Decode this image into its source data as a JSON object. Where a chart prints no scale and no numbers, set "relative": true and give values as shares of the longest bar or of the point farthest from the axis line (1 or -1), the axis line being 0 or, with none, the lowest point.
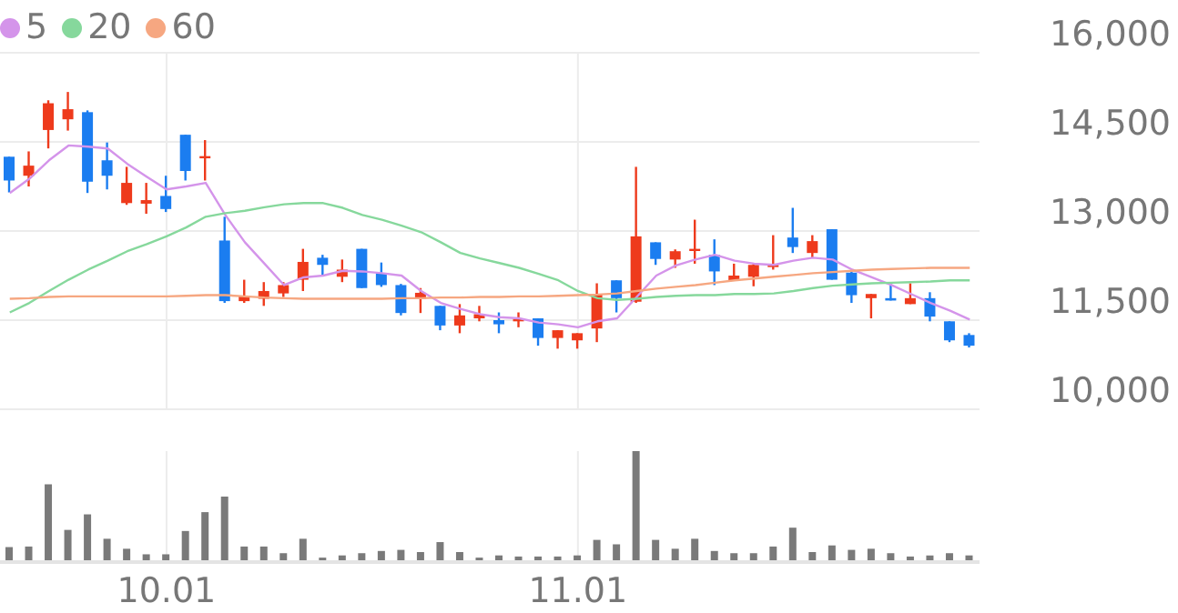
{
  "chart_data": [
    {
      "type": "candlestick",
      "categories": [
        null,
        null,
        null,
        null,
        null,
        null,
        null,
        null,
        "10.01",
        null,
        null,
        null,
        null,
        null,
        null,
        null,
        null,
        null,
        null,
        null,
        null,
        null,
        null,
        null,
        null,
        null,
        null,
        null,
        null,
        "11.01",
        null,
        null,
        null,
        null,
        null,
        null,
        null,
        null,
        null,
        null,
        null,
        null,
        null,
        null,
        null,
        null,
        null,
        null,
        null,
        null
      ],
      "ohlc": [
        [
          14250,
          14250,
          13650,
          13850
        ],
        [
          13930,
          14340,
          13750,
          14100
        ],
        [
          14700,
          15200,
          14390,
          15150
        ],
        [
          14880,
          15340,
          14690,
          15050
        ],
        [
          15000,
          15030,
          13640,
          13830
        ],
        [
          14190,
          14490,
          13700,
          13930
        ],
        [
          13470,
          14080,
          13440,
          13810
        ],
        [
          13460,
          13810,
          13290,
          13520
        ],
        [
          13590,
          13930,
          13320,
          13370
        ],
        [
          14620,
          14620,
          13850,
          14010
        ],
        [
          14250,
          14530,
          13850,
          14260
        ],
        [
          12840,
          13240,
          11790,
          11820
        ],
        [
          11820,
          12180,
          11790,
          11910
        ],
        [
          11860,
          12140,
          11740,
          11990
        ],
        [
          11950,
          12140,
          11890,
          12090
        ],
        [
          12180,
          12700,
          11990,
          12480
        ],
        [
          12550,
          12600,
          12250,
          12430
        ],
        [
          12230,
          12520,
          12140,
          12350
        ],
        [
          12700,
          12700,
          12040,
          12040
        ],
        [
          12290,
          12470,
          12060,
          12090
        ],
        [
          12090,
          12110,
          11580,
          11620
        ],
        [
          11860,
          12040,
          11620,
          11960
        ],
        [
          11740,
          11740,
          11330,
          11410
        ],
        [
          11410,
          11770,
          11280,
          11580
        ],
        [
          11530,
          11740,
          11480,
          11600
        ],
        [
          11500,
          11630,
          11280,
          11430
        ],
        [
          11480,
          11630,
          11380,
          11520
        ],
        [
          11530,
          11530,
          11070,
          11200
        ],
        [
          11200,
          11330,
          11020,
          11330
        ],
        [
          11160,
          11280,
          11020,
          11280
        ],
        [
          11360,
          12120,
          11130,
          11940
        ],
        [
          12170,
          12170,
          11630,
          11870
        ],
        [
          11810,
          14080,
          11790,
          12910
        ],
        [
          12810,
          12810,
          12430,
          12530
        ],
        [
          12520,
          12690,
          12380,
          12660
        ],
        [
          12670,
          13190,
          12450,
          12700
        ],
        [
          12600,
          12860,
          12090,
          12320
        ],
        [
          12170,
          12450,
          12170,
          12250
        ],
        [
          12230,
          12450,
          12070,
          12430
        ],
        [
          12400,
          12930,
          12350,
          12430
        ],
        [
          12890,
          13390,
          12630,
          12730
        ],
        [
          12630,
          12930,
          12550,
          12830
        ],
        [
          13030,
          13030,
          12180,
          12180
        ],
        [
          12300,
          12320,
          11790,
          11920
        ],
        [
          11870,
          11940,
          11530,
          11940
        ],
        [
          11870,
          12120,
          11830,
          11830
        ],
        [
          11770,
          12120,
          11770,
          11870
        ],
        [
          11870,
          11970,
          11480,
          11560
        ],
        [
          11480,
          11480,
          11130,
          11160
        ],
        [
          11250,
          11280,
          11040,
          11070
        ]
      ],
      "colors": [
        "#1b7df0",
        "#ee3a1c",
        "#ee3a1c",
        "#ee3a1c",
        "#1b7df0",
        "#1b7df0",
        "#ee3a1c",
        "#ee3a1c",
        "#1b7df0",
        "#1b7df0",
        "#ee3a1c",
        "#1b7df0",
        "#ee3a1c",
        "#ee3a1c",
        "#ee3a1c",
        "#ee3a1c",
        "#1b7df0",
        "#ee3a1c",
        "#1b7df0",
        "#1b7df0",
        "#1b7df0",
        "#ee3a1c",
        "#1b7df0",
        "#ee3a1c",
        "#ee3a1c",
        "#1b7df0",
        "#ee3a1c",
        "#1b7df0",
        "#ee3a1c",
        "#ee3a1c",
        "#ee3a1c",
        "#1b7df0",
        "#ee3a1c",
        "#1b7df0",
        "#ee3a1c",
        "#ee3a1c",
        "#1b7df0",
        "#ee3a1c",
        "#ee3a1c",
        "#ee3a1c",
        "#1b7df0",
        "#ee3a1c",
        "#1b7df0",
        "#1b7df0",
        "#ee3a1c",
        "#1b7df0",
        "#ee3a1c",
        "#1b7df0",
        "#1b7df0",
        "#1b7df0"
      ],
      "series": [
        {
          "type": "line",
          "name": "5",
          "color": "#d494ea",
          "values": [
            13640,
            13880,
            14190,
            14440,
            14420,
            14390,
            14130,
            13910,
            13700,
            13750,
            13810,
            13270,
            12810,
            12450,
            12090,
            12220,
            12250,
            12330,
            12320,
            12290,
            12250,
            11990,
            11790,
            11690,
            11600,
            11550,
            11530,
            11460,
            11430,
            11380,
            11480,
            11530,
            11890,
            12250,
            12420,
            12520,
            12600,
            12500,
            12450,
            12430,
            12500,
            12550,
            12520,
            12350,
            12220,
            12090,
            11940,
            11790,
            11660,
            11510
          ]
        },
        {
          "type": "line",
          "name": "20",
          "color": "#86d89c",
          "values": [
            11630,
            11790,
            11990,
            12180,
            12350,
            12500,
            12660,
            12780,
            12910,
            13060,
            13240,
            13300,
            13340,
            13400,
            13450,
            13470,
            13470,
            13390,
            13270,
            13190,
            13090,
            12980,
            12810,
            12630,
            12540,
            12460,
            12380,
            12280,
            12170,
            11990,
            11870,
            11840,
            11860,
            11890,
            11910,
            11920,
            11920,
            11940,
            11940,
            11950,
            11990,
            12040,
            12080,
            12100,
            12120,
            12130,
            12140,
            12150,
            12170,
            12170
          ]
        },
        {
          "type": "line",
          "name": "60",
          "color": "#f6a781",
          "values": [
            11860,
            11870,
            11890,
            11900,
            11900,
            11900,
            11900,
            11900,
            11900,
            11910,
            11920,
            11920,
            11900,
            11880,
            11870,
            11860,
            11860,
            11860,
            11860,
            11860,
            11870,
            11870,
            11880,
            11880,
            11890,
            11890,
            11900,
            11900,
            11910,
            11920,
            11930,
            11950,
            11990,
            12030,
            12060,
            12090,
            12130,
            12170,
            12200,
            12230,
            12260,
            12290,
            12310,
            12330,
            12350,
            12360,
            12370,
            12380,
            12380,
            12380
          ]
        }
      ],
      "ylim": [
        10000,
        16000
      ],
      "yticks": [
        {
          "value": 10000,
          "label": "10,000"
        },
        {
          "value": 11500,
          "label": "11,500"
        },
        {
          "value": 13000,
          "label": "13,000"
        },
        {
          "value": 14500,
          "label": "14,500"
        },
        {
          "value": 16000,
          "label": "16,000"
        }
      ],
      "grid": true,
      "legend": "top left",
      "tick_labels": "y"
    },
    {
      "type": "bar",
      "relative": true,
      "color": "#7a7a7a",
      "categories": [
        null,
        null,
        null,
        null,
        null,
        null,
        null,
        null,
        "10.01",
        null,
        null,
        null,
        null,
        null,
        null,
        null,
        null,
        null,
        null,
        null,
        null,
        null,
        null,
        null,
        null,
        null,
        null,
        null,
        null,
        "11.01",
        null,
        null,
        null,
        null,
        null,
        null,
        null,
        null,
        null,
        null,
        null,
        null,
        null,
        null,
        null,
        null,
        null,
        null,
        null,
        null
      ],
      "values": [
        0.135,
        0.14,
        0.7,
        0.29,
        0.43,
        0.21,
        0.12,
        0.07,
        0.07,
        0.28,
        0.45,
        0.59,
        0.14,
        0.14,
        0.08,
        0.21,
        0.04,
        0.06,
        0.08,
        0.1,
        0.11,
        0.09,
        0.18,
        0.09,
        0.04,
        0.06,
        0.05,
        0.05,
        0.05,
        0.06,
        0.2,
        0.16,
        1,
        0.2,
        0.12,
        0.21,
        0.1,
        0.08,
        0.08,
        0.14,
        0.31,
        0.09,
        0.15,
        0.11,
        0.12,
        0.08,
        0.05,
        0.06,
        0.08,
        0.06
      ],
      "grid": "x"
    }
  ]
}
